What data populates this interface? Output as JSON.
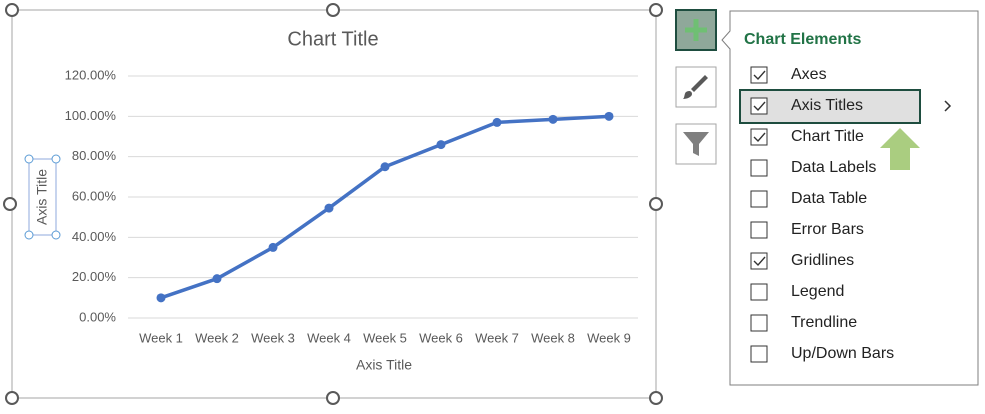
{
  "chart_data": {
    "type": "line",
    "title": "Chart Title",
    "x_label": "Axis Title",
    "y_label": "Axis Title",
    "categories": [
      "Week 1",
      "Week 2",
      "Week 3",
      "Week 4",
      "Week 5",
      "Week 6",
      "Week 7",
      "Week 8",
      "Week 9"
    ],
    "values": [
      10,
      19.5,
      35,
      54.5,
      75,
      86,
      97,
      98.5,
      100
    ],
    "color": "#4472c4",
    "ylim": [
      0,
      120
    ],
    "yticks": [
      {
        "value": 0,
        "label": "0.00%"
      },
      {
        "value": 20,
        "label": "20.00%"
      },
      {
        "value": 40,
        "label": "40.00%"
      },
      {
        "value": 60,
        "label": "60.00%"
      },
      {
        "value": 80,
        "label": "80.00%"
      },
      {
        "value": 100,
        "label": "100.00%"
      },
      {
        "value": 120,
        "label": "120.00%"
      }
    ],
    "grid": true
  },
  "chart_elements_panel": {
    "title": "Chart Elements",
    "items": [
      {
        "label": "Axes",
        "checked": true
      },
      {
        "label": "Axis Titles",
        "checked": true,
        "highlighted": true
      },
      {
        "label": "Chart Title",
        "checked": true
      },
      {
        "label": "Data Labels",
        "checked": false
      },
      {
        "label": "Data Table",
        "checked": false
      },
      {
        "label": "Error Bars",
        "checked": false
      },
      {
        "label": "Gridlines",
        "checked": true
      },
      {
        "label": "Legend",
        "checked": false
      },
      {
        "label": "Trendline",
        "checked": false
      },
      {
        "label": "Up/Down Bars",
        "checked": false
      }
    ]
  }
}
